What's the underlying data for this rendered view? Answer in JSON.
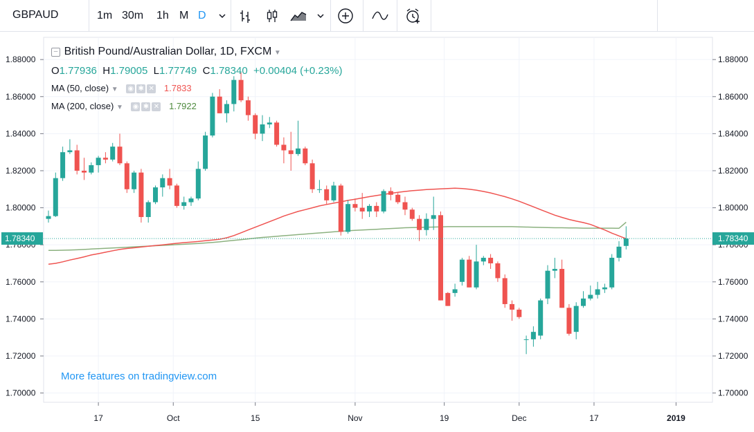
{
  "toolbar": {
    "symbol": "GBPAUD",
    "intervals": [
      "1m",
      "30m",
      "1h",
      "M",
      "D"
    ],
    "active_interval": "D",
    "icons": [
      "chevron-down-icon",
      "bar-chart-icon",
      "candlestick-icon",
      "area-chart-icon",
      "chevron-down-icon",
      "add-indicator-icon",
      "compare-icon",
      "alert-clock-icon"
    ]
  },
  "legend": {
    "title": "British Pound/Australian Dollar, 1D, FXCM",
    "o_label": "O",
    "o_value": "1.77936",
    "h_label": "H",
    "h_value": "1.79005",
    "l_label": "L",
    "l_value": "1.77749",
    "c_label": "C",
    "c_value": "1.78340",
    "change": "+0.00404 (+0.23%)",
    "ma50_label": "MA (50, close)",
    "ma50_value": "1.7833",
    "ma200_label": "MA (200, close)",
    "ma200_value": "1.7922"
  },
  "footer_link": "More features on tradingview.com",
  "colors": {
    "up": "#26a69a",
    "down": "#ef5350",
    "ma50": "#ef5350",
    "ma200": "#8bb17f",
    "accent": "#2196f3"
  },
  "chart_data": {
    "type": "candlestick",
    "symbol": "GBPAUD",
    "y_ticks": [
      "1.88000",
      "1.86000",
      "1.84000",
      "1.82000",
      "1.80000",
      "1.78000",
      "1.76000",
      "1.74000",
      "1.72000",
      "1.70000"
    ],
    "ylim": [
      1.695,
      1.892
    ],
    "x_labels": [
      "17",
      "Oct",
      "15",
      "Nov",
      "19",
      "Dec",
      "17",
      "2019"
    ],
    "last_price": "1.78340",
    "ohlc": [
      [
        1.794,
        1.7985,
        1.792,
        1.7955
      ],
      [
        1.7955,
        1.819,
        1.795,
        1.816
      ],
      [
        1.816,
        1.833,
        1.8145,
        1.83
      ],
      [
        1.83,
        1.837,
        1.829,
        1.831
      ],
      [
        1.831,
        1.834,
        1.818,
        1.82
      ],
      [
        1.82,
        1.827,
        1.815,
        1.819
      ],
      [
        1.819,
        1.8245,
        1.818,
        1.823
      ],
      [
        1.823,
        1.828,
        1.819,
        1.827
      ],
      [
        1.827,
        1.83,
        1.824,
        1.826
      ],
      [
        1.826,
        1.835,
        1.825,
        1.833
      ],
      [
        1.833,
        1.84,
        1.823,
        1.824
      ],
      [
        1.824,
        1.825,
        1.808,
        1.81
      ],
      [
        1.81,
        1.82,
        1.808,
        1.819
      ],
      [
        1.819,
        1.821,
        1.792,
        1.795
      ],
      [
        1.795,
        1.804,
        1.792,
        1.803
      ],
      [
        1.803,
        1.812,
        1.802,
        1.811
      ],
      [
        1.811,
        1.818,
        1.806,
        1.816
      ],
      [
        1.816,
        1.821,
        1.81,
        1.812
      ],
      [
        1.812,
        1.813,
        1.8,
        1.801
      ],
      [
        1.801,
        1.806,
        1.799,
        1.803
      ],
      [
        1.803,
        1.806,
        1.801,
        1.805
      ],
      [
        1.805,
        1.825,
        1.804,
        1.821
      ],
      [
        1.821,
        1.841,
        1.82,
        1.839
      ],
      [
        1.839,
        1.862,
        1.838,
        1.86
      ],
      [
        1.86,
        1.864,
        1.851,
        1.851
      ],
      [
        1.851,
        1.858,
        1.846,
        1.856
      ],
      [
        1.856,
        1.871,
        1.852,
        1.869
      ],
      [
        1.869,
        1.873,
        1.857,
        1.858
      ],
      [
        1.858,
        1.86,
        1.847,
        1.85
      ],
      [
        1.85,
        1.851,
        1.837,
        1.84
      ],
      [
        1.84,
        1.85,
        1.836,
        1.845
      ],
      [
        1.845,
        1.849,
        1.843,
        1.846
      ],
      [
        1.846,
        1.847,
        1.833,
        1.834
      ],
      [
        1.834,
        1.838,
        1.824,
        1.831
      ],
      [
        1.831,
        1.841,
        1.82,
        1.829
      ],
      [
        1.829,
        1.847,
        1.828,
        1.832
      ],
      [
        1.832,
        1.833,
        1.823,
        1.824
      ],
      [
        1.824,
        1.826,
        1.808,
        1.81
      ],
      [
        1.81,
        1.815,
        1.808,
        1.81
      ],
      [
        1.81,
        1.812,
        1.802,
        1.804
      ],
      [
        1.804,
        1.814,
        1.803,
        1.812
      ],
      [
        1.812,
        1.813,
        1.785,
        1.787
      ],
      [
        1.787,
        1.804,
        1.786,
        1.802
      ],
      [
        1.802,
        1.805,
        1.798,
        1.8
      ],
      [
        1.8,
        1.808,
        1.794,
        1.798
      ],
      [
        1.798,
        1.802,
        1.795,
        1.801
      ],
      [
        1.801,
        1.803,
        1.795,
        1.798
      ],
      [
        1.798,
        1.81,
        1.797,
        1.809
      ],
      [
        1.809,
        1.811,
        1.804,
        1.807
      ],
      [
        1.807,
        1.808,
        1.802,
        1.803
      ],
      [
        1.803,
        1.806,
        1.796,
        1.799
      ],
      [
        1.799,
        1.8,
        1.793,
        1.794
      ],
      [
        1.794,
        1.796,
        1.782,
        1.788
      ],
      [
        1.788,
        1.797,
        1.785,
        1.794
      ],
      [
        1.794,
        1.806,
        1.788,
        1.796
      ],
      [
        1.796,
        1.798,
        1.75,
        1.75
      ],
      [
        1.754,
        1.7545,
        1.747,
        1.747
      ],
      [
        1.754,
        1.759,
        1.752,
        1.756
      ],
      [
        1.76,
        1.773,
        1.758,
        1.772
      ],
      [
        1.772,
        1.774,
        1.757,
        1.757
      ],
      [
        1.757,
        1.78,
        1.756,
        1.771
      ],
      [
        1.771,
        1.774,
        1.769,
        1.773
      ],
      [
        1.773,
        1.775,
        1.767,
        1.77
      ],
      [
        1.77,
        1.771,
        1.76,
        1.762
      ],
      [
        1.762,
        1.764,
        1.746,
        1.748
      ],
      [
        1.748,
        1.75,
        1.739,
        1.745
      ],
      [
        1.745,
        1.746,
        1.74,
        1.741
      ],
      [
        1.729,
        1.731,
        1.721,
        1.729
      ],
      [
        1.729,
        1.736,
        1.725,
        1.733
      ],
      [
        1.731,
        1.751,
        1.729,
        1.75
      ],
      [
        1.751,
        1.769,
        1.748,
        1.766
      ],
      [
        1.766,
        1.773,
        1.762,
        1.767
      ],
      [
        1.767,
        1.772,
        1.746,
        1.746
      ],
      [
        1.746,
        1.748,
        1.731,
        1.732
      ],
      [
        1.733,
        1.749,
        1.729,
        1.747
      ],
      [
        1.747,
        1.755,
        1.746,
        1.751
      ],
      [
        1.751,
        1.758,
        1.75,
        1.753
      ],
      [
        1.753,
        1.76,
        1.751,
        1.756
      ],
      [
        1.756,
        1.759,
        1.754,
        1.757
      ],
      [
        1.757,
        1.775,
        1.756,
        1.773
      ],
      [
        1.773,
        1.782,
        1.771,
        1.779
      ],
      [
        1.7794,
        1.79,
        1.7775,
        1.7834
      ]
    ],
    "ma50": [
      1.7695,
      1.77,
      1.7708,
      1.7718,
      1.7726,
      1.7735,
      1.7745,
      1.7752,
      1.776,
      1.7768,
      1.7775,
      1.778,
      1.7784,
      1.7788,
      1.7792,
      1.7796,
      1.78,
      1.7804,
      1.7808,
      1.7812,
      1.7815,
      1.7818,
      1.7822,
      1.7826,
      1.783,
      1.7838,
      1.785,
      1.7865,
      1.788,
      1.7895,
      1.791,
      1.7925,
      1.794,
      1.7955,
      1.7968,
      1.798,
      1.799,
      1.8,
      1.801,
      1.8018,
      1.8025,
      1.8032,
      1.804,
      1.8046,
      1.8053,
      1.806,
      1.8066,
      1.8072,
      1.8078,
      1.8083,
      1.8088,
      1.8092,
      1.8095,
      1.8098,
      1.81,
      1.8102,
      1.8104,
      1.8106,
      1.8104,
      1.81,
      1.8095,
      1.8088,
      1.808,
      1.807,
      1.806,
      1.8048,
      1.8035,
      1.802,
      1.8005,
      1.799,
      1.7975,
      1.796,
      1.7948,
      1.7937,
      1.7928,
      1.792,
      1.791,
      1.7895,
      1.788,
      1.7863,
      1.7848,
      1.7833
    ],
    "ma200": [
      1.777,
      1.777,
      1.7771,
      1.7772,
      1.7773,
      1.7775,
      1.7777,
      1.7779,
      1.7781,
      1.7783,
      1.7785,
      1.7787,
      1.7789,
      1.7791,
      1.7793,
      1.7795,
      1.7797,
      1.7799,
      1.7801,
      1.7803,
      1.7805,
      1.7807,
      1.781,
      1.7813,
      1.7816,
      1.782,
      1.7824,
      1.7828,
      1.7832,
      1.7836,
      1.784,
      1.7843,
      1.7846,
      1.7849,
      1.7852,
      1.7855,
      1.7858,
      1.7861,
      1.7864,
      1.7867,
      1.787,
      1.7873,
      1.7876,
      1.7878,
      1.788,
      1.7882,
      1.7884,
      1.7886,
      1.7888,
      1.789,
      1.7892,
      1.7893,
      1.7894,
      1.7895,
      1.7896,
      1.7897,
      1.7898,
      1.7898,
      1.7898,
      1.7898,
      1.7898,
      1.7898,
      1.7898,
      1.7898,
      1.7898,
      1.7898,
      1.7897,
      1.7896,
      1.7895,
      1.7894,
      1.7893,
      1.7892,
      1.7892,
      1.7891,
      1.7891,
      1.789,
      1.789,
      1.789,
      1.789,
      1.789,
      1.7889,
      1.7922
    ]
  }
}
